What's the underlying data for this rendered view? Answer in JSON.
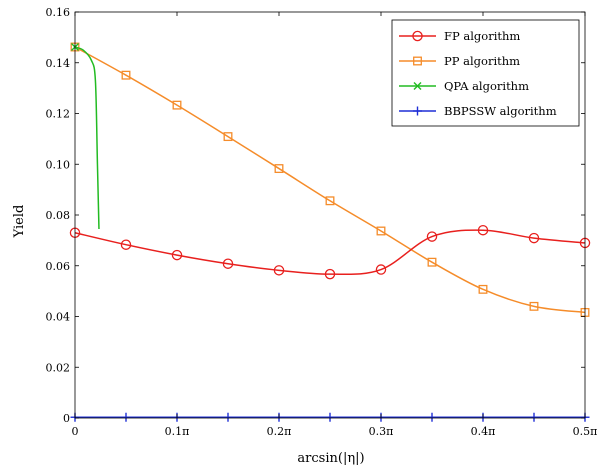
{
  "chart_data": {
    "type": "line",
    "xlabel": "arcsin(|η|)",
    "ylabel": "Yield",
    "xlim": [
      0,
      0.5
    ],
    "ylim": [
      0,
      0.16
    ],
    "x_unit": "π",
    "x_ticks": [
      0,
      0.1,
      0.2,
      0.3,
      0.4,
      0.5
    ],
    "x_tick_labels": [
      "0",
      "0.1π",
      "0.2π",
      "0.3π",
      "0.4π",
      "0.5π"
    ],
    "y_ticks": [
      0,
      0.02,
      0.04,
      0.06,
      0.08,
      0.1,
      0.12,
      0.14,
      0.16
    ],
    "y_tick_labels": [
      "0",
      "0.02",
      "0.04",
      "0.06",
      "0.08",
      "0.10",
      "0.12",
      "0.14",
      "0.16"
    ],
    "grid": false,
    "legend_position": "top-right",
    "series": [
      {
        "name": "FP algorithm",
        "color": "#e8201e",
        "marker": "circle",
        "x": [
          0,
          0.05,
          0.1,
          0.15,
          0.2,
          0.25,
          0.3,
          0.35,
          0.4,
          0.45,
          0.5
        ],
        "values": [
          0.073,
          0.0683,
          0.0642,
          0.0608,
          0.0582,
          0.0567,
          0.0585,
          0.0715,
          0.074,
          0.0709,
          0.069
        ]
      },
      {
        "name": "PP algorithm",
        "color": "#f58c2a",
        "marker": "square",
        "x": [
          0,
          0.05,
          0.1,
          0.15,
          0.2,
          0.25,
          0.3,
          0.35,
          0.4,
          0.45,
          0.5
        ],
        "values": [
          0.1462,
          0.1351,
          0.1233,
          0.1109,
          0.0983,
          0.0856,
          0.0737,
          0.0614,
          0.0507,
          0.044,
          0.0416
        ]
      },
      {
        "name": "QPA algorithm",
        "color": "#22bb22",
        "marker": "x",
        "x": [
          0,
          0.008,
          0.016,
          0.02,
          0.022,
          0.0235
        ],
        "values": [
          0.1462,
          0.145,
          0.141,
          0.133,
          0.1,
          0.0745
        ]
      },
      {
        "name": "BBPSSW algorithm",
        "color": "#1f2fd6",
        "marker": "plus",
        "x": [
          0,
          0.05,
          0.1,
          0.15,
          0.2,
          0.25,
          0.3,
          0.35,
          0.4,
          0.45,
          0.5
        ],
        "values": [
          0.0003,
          0.0003,
          0.0003,
          0.0003,
          0.0003,
          0.0003,
          0.0003,
          0.0003,
          0.0003,
          0.0003,
          0.0003
        ]
      }
    ]
  }
}
